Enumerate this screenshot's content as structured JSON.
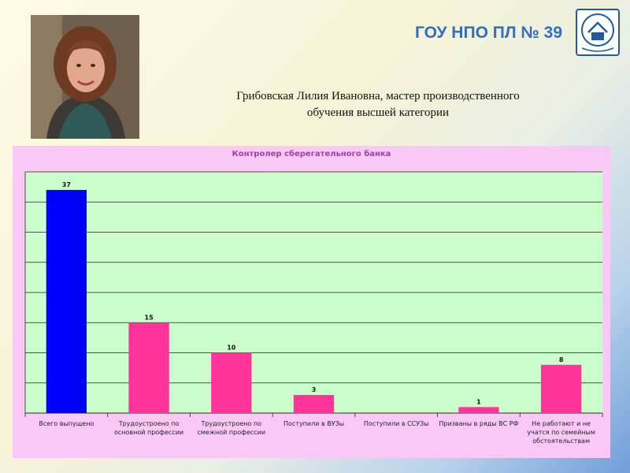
{
  "header": {
    "org_title": "ГОУ НПО ПЛ № 39",
    "caption_line1": "Грибовская Лилия Ивановна,  мастер производственного",
    "caption_line2": "обучения высшей категории"
  },
  "colors": {
    "title_blue": "#2e6fc4",
    "chart_frame": "#fac8f6",
    "plot_area": "#ccfdcc",
    "bar_primary": "#0000ff",
    "bar_secondary": "#ff3399",
    "chart_title": "#a23ea4"
  },
  "icons": {
    "logo": "school-emblem-icon"
  },
  "chart_data": {
    "type": "bar",
    "title": "Контролер сберегательного банка",
    "categories": [
      "Всего выпущено",
      "Трудоустроено по основной профессии",
      "Трудоустроено по смежной профессии",
      "Поступили в ВУЗы",
      "Поступили в ССУЗы",
      "Призваны в ряды ВС РФ",
      "Не работают и не учатся по семейным обстоятельствам"
    ],
    "values": [
      37,
      15,
      10,
      3,
      0,
      1,
      8
    ],
    "value_labels": [
      "37",
      "15",
      "10",
      "3",
      "",
      "1",
      "8"
    ],
    "ylim": [
      0,
      40
    ],
    "grid": true,
    "legend": "none",
    "xlabel": "",
    "ylabel": ""
  }
}
